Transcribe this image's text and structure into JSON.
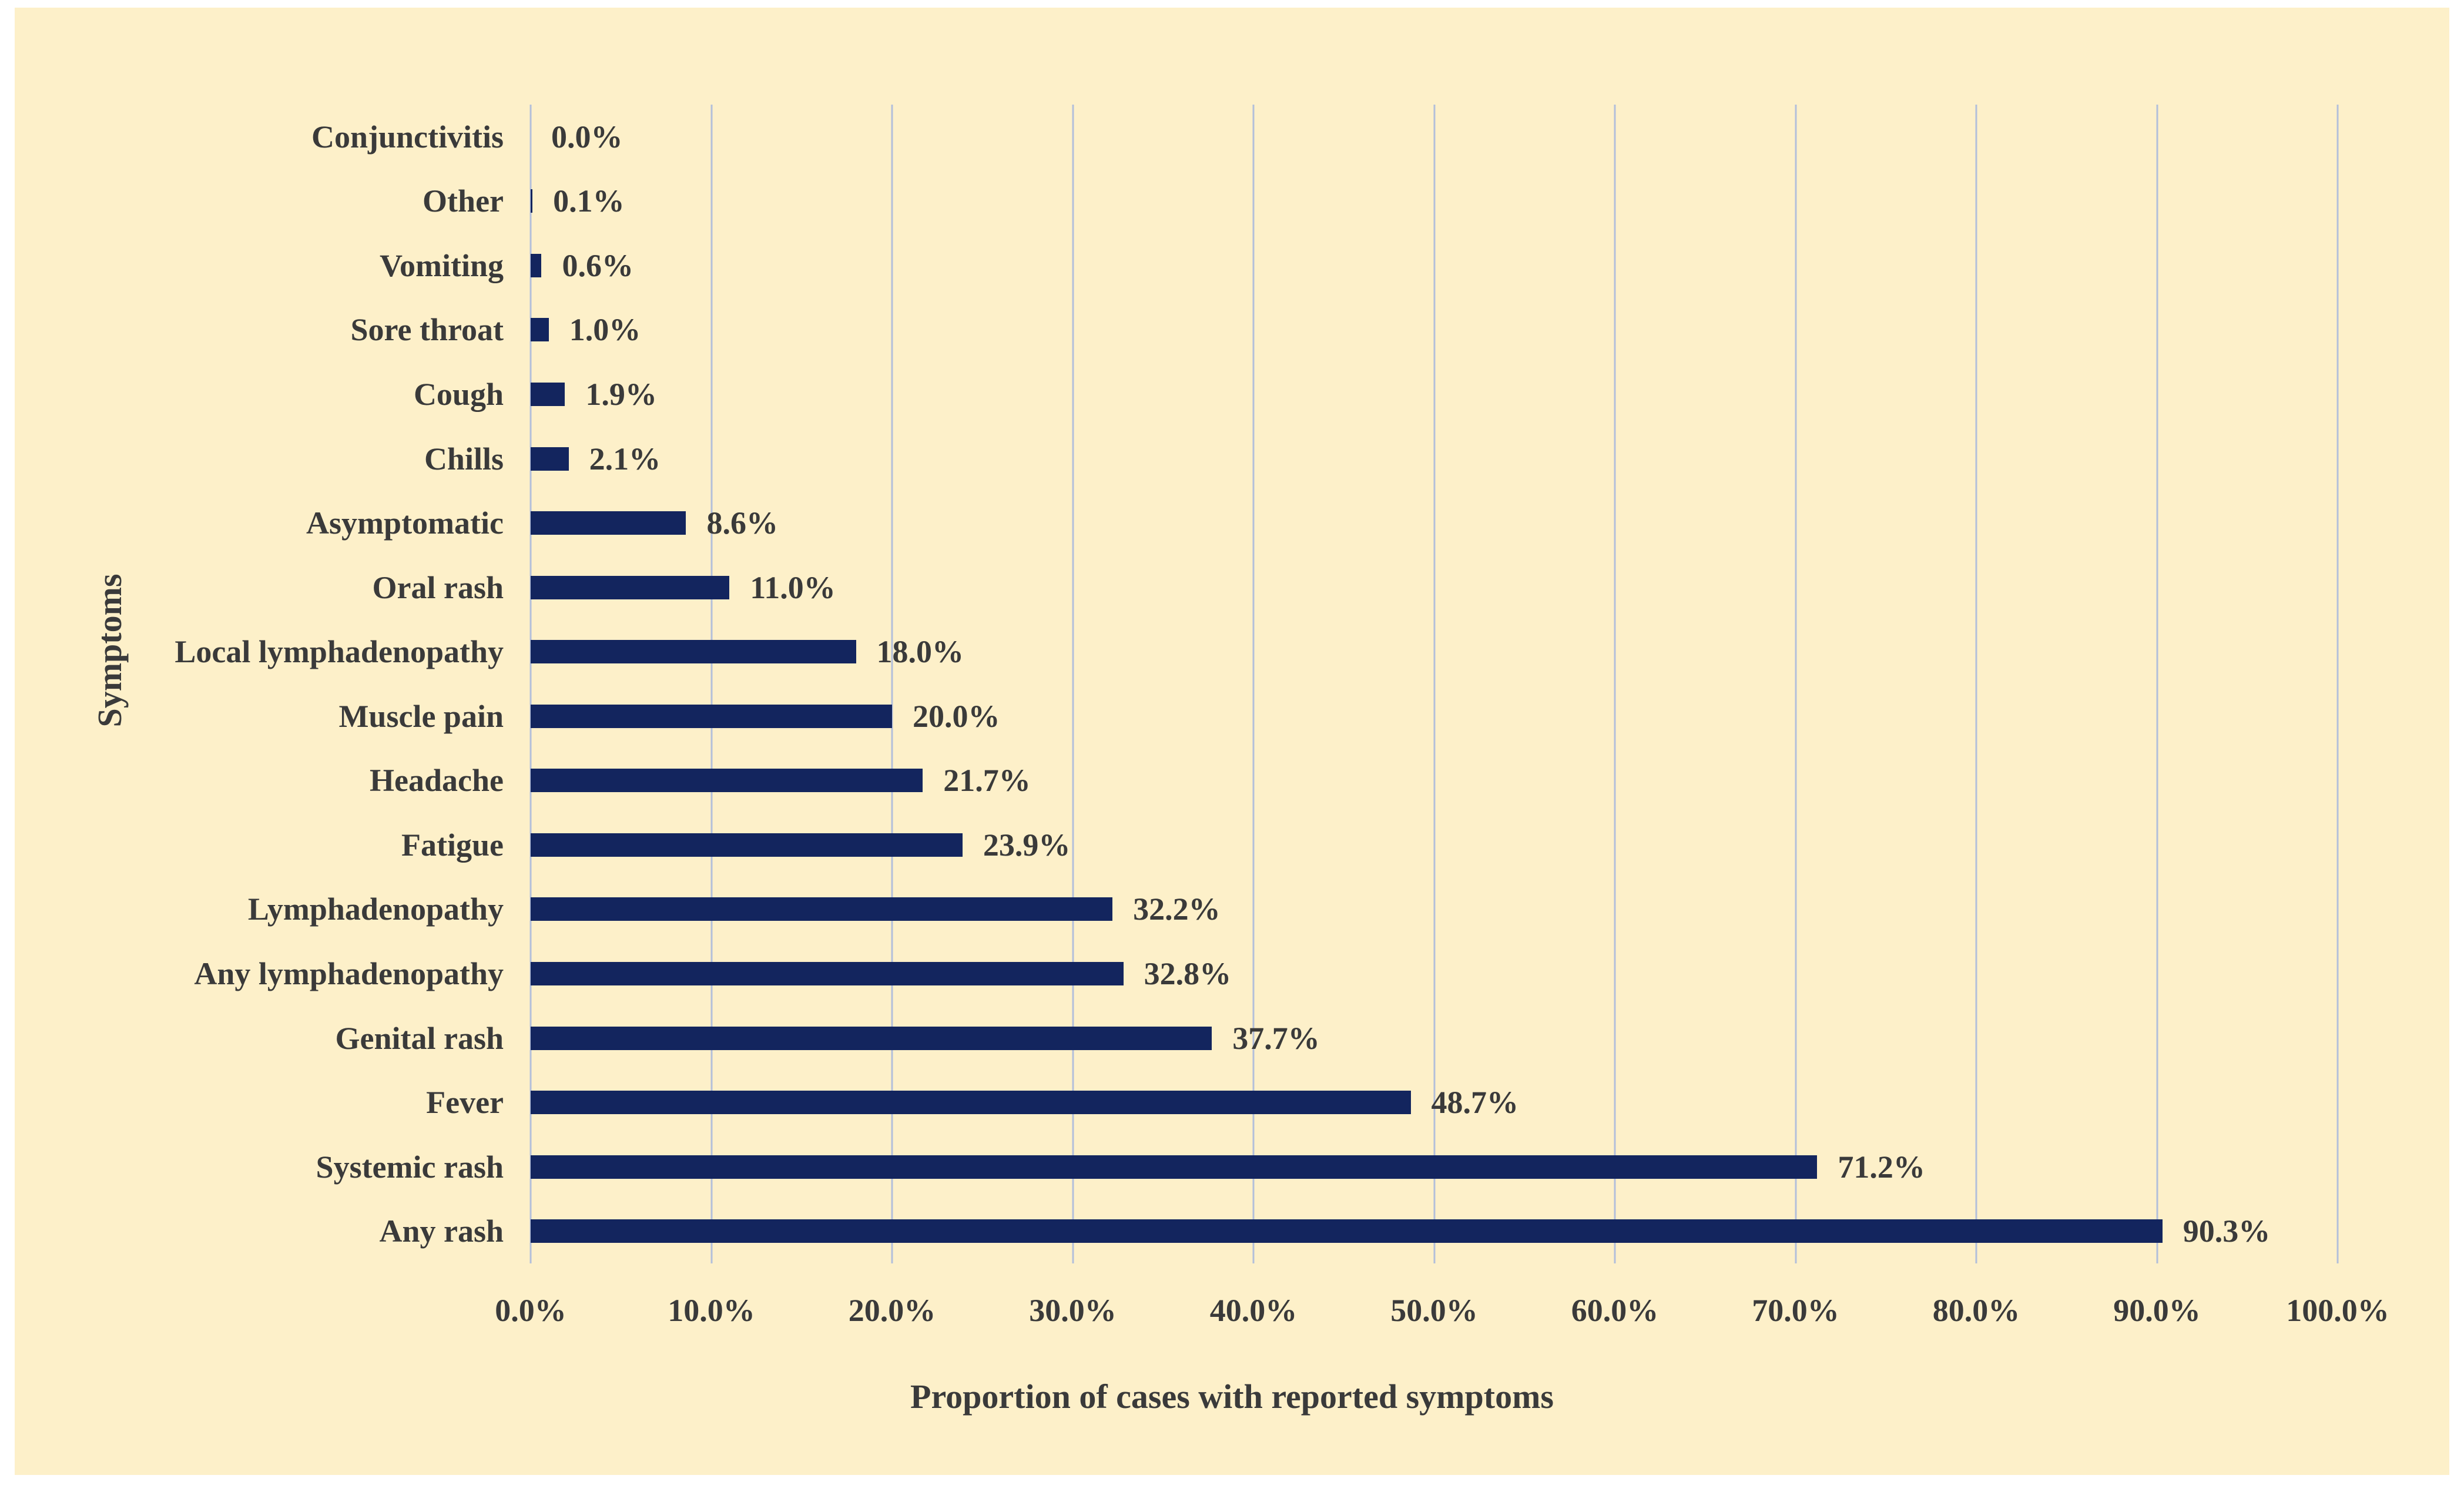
{
  "chart_data": {
    "type": "bar",
    "orientation": "horizontal",
    "order": "top-to-bottom",
    "title": "",
    "xlabel": "Proportion of cases with reported symptoms",
    "ylabel": "Symptoms",
    "xlim": [
      0,
      100
    ],
    "grid": true,
    "legend": false,
    "categories": [
      "Conjunctivitis",
      "Other",
      "Vomiting",
      "Sore throat",
      "Cough",
      "Chills",
      "Asymptomatic",
      "Oral rash",
      "Local lymphadenopathy",
      "Muscle pain",
      "Headache",
      "Fatigue",
      "Lymphadenopathy",
      "Any lymphadenopathy",
      "Genital rash",
      "Fever",
      "Systemic rash",
      "Any rash"
    ],
    "values": [
      0.0,
      0.1,
      0.6,
      1.0,
      1.9,
      2.1,
      8.6,
      11.0,
      18.0,
      20.0,
      21.7,
      23.9,
      32.2,
      32.8,
      37.7,
      48.7,
      71.2,
      90.3
    ],
    "value_labels": [
      "0.0%",
      "0.1%",
      "0.6%",
      "1.0%",
      "1.9%",
      "2.1%",
      "8.6%",
      "11.0%",
      "18.0%",
      "20.0%",
      "21.7%",
      "23.9%",
      "32.2%",
      "32.8%",
      "37.7%",
      "48.7%",
      "71.2%",
      "90.3%"
    ],
    "xticks": [
      "0.0%",
      "10.0%",
      "20.0%",
      "30.0%",
      "40.0%",
      "50.0%",
      "60.0%",
      "70.0%",
      "80.0%",
      "90.0%",
      "100.0%"
    ],
    "colors": {
      "bar": "#13255e",
      "plot_background": "#fdf0c9",
      "page_background": "#ffffff",
      "gridline": "#b3bfda",
      "text": "#3a3a3a"
    }
  }
}
